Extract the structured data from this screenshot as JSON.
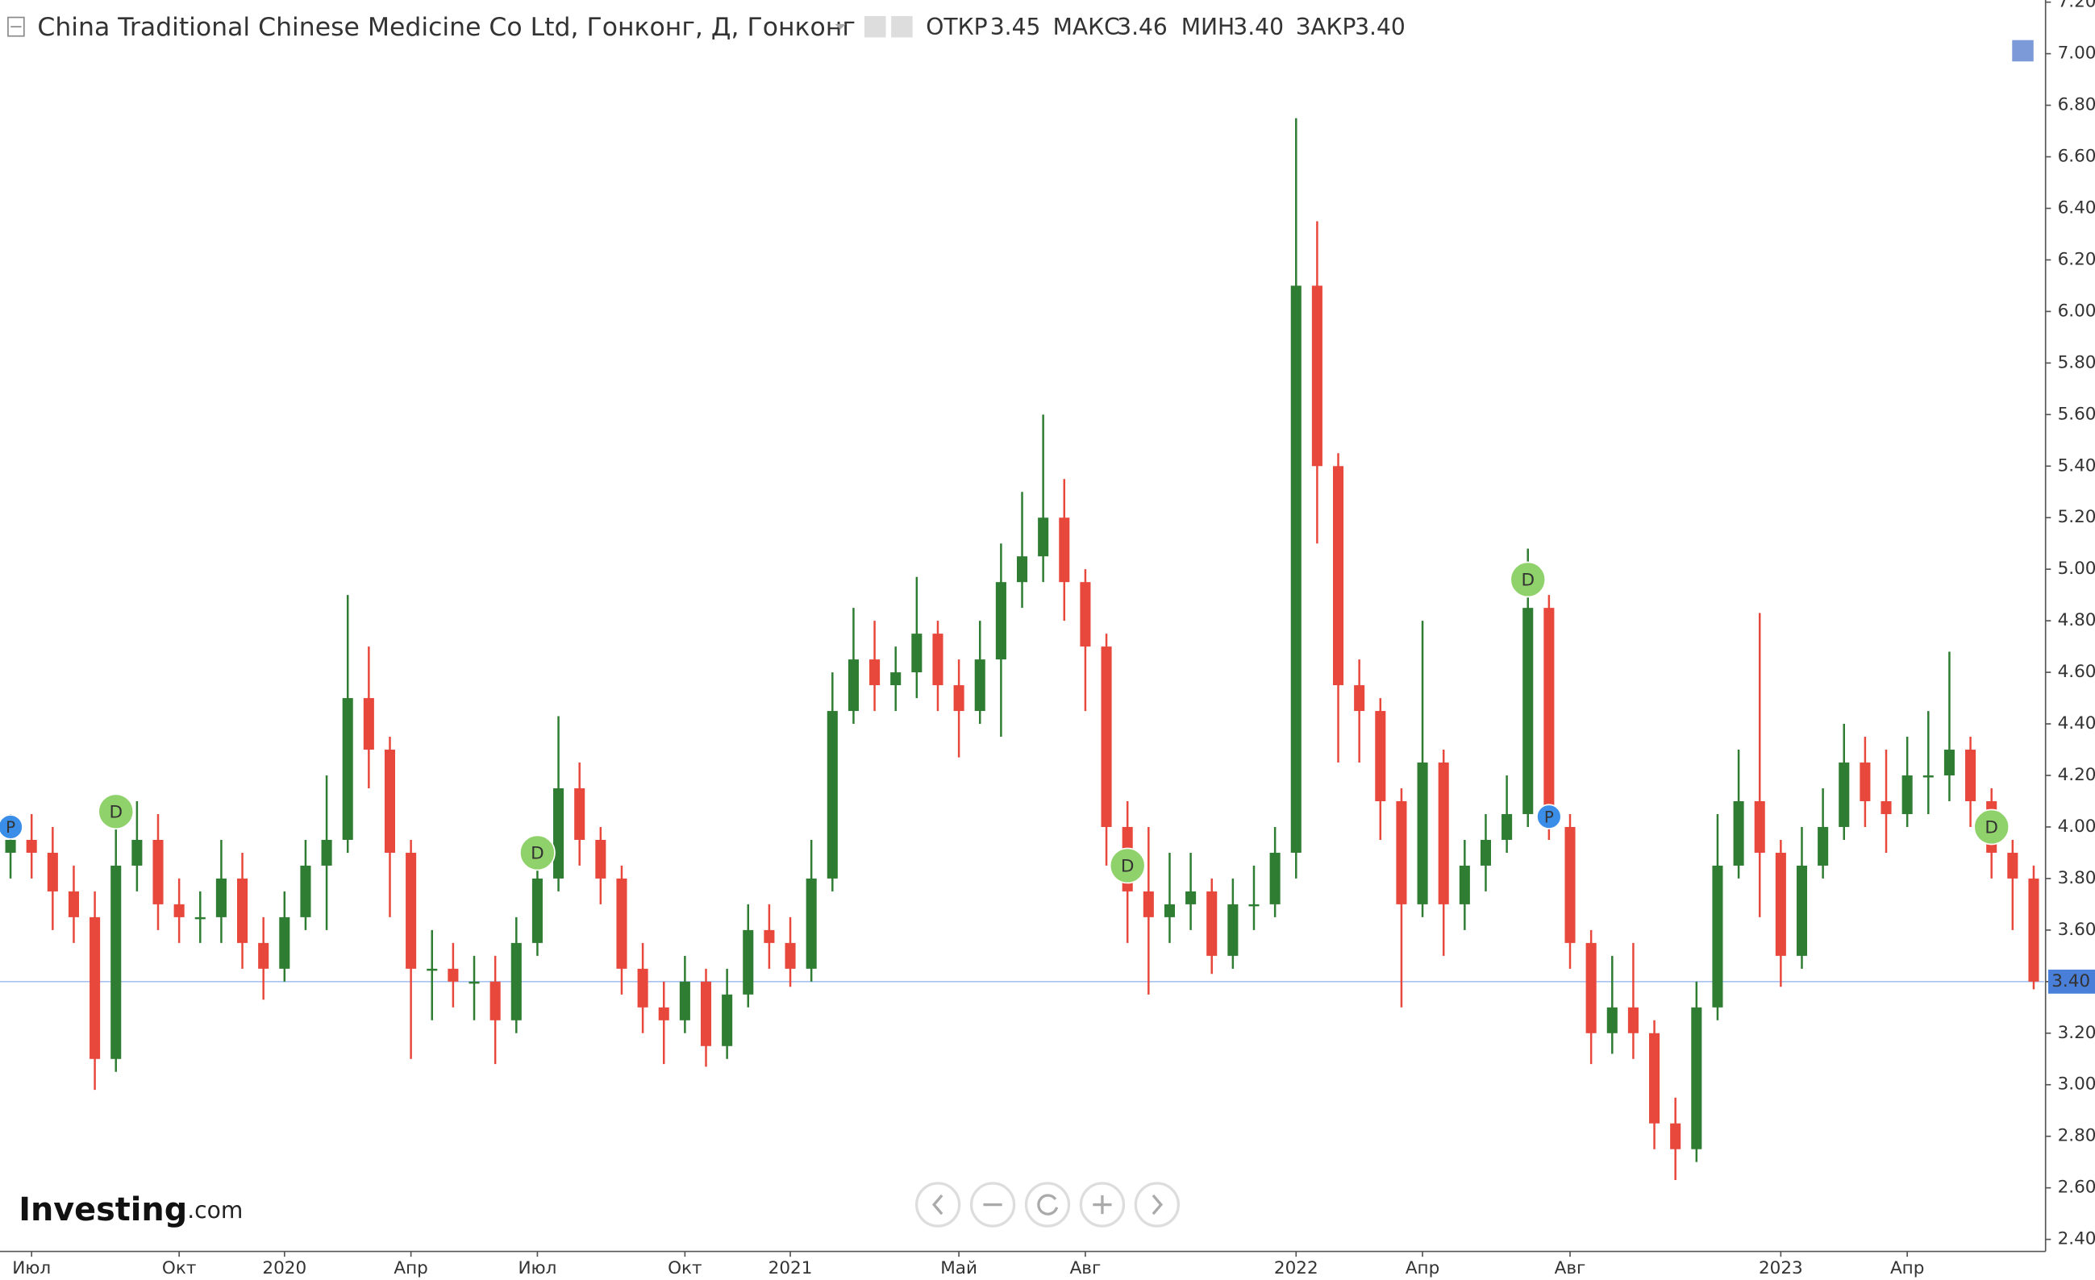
{
  "chart_data": {
    "type": "candlestick",
    "title": "China Traditional Chinese Medicine Co Ltd, Гонконг, Д, Гонконг",
    "header": [
      {
        "label": "ОТКР",
        "value": 3.45,
        "value_label": "3.45"
      },
      {
        "label": "МАКС",
        "value": 3.46,
        "value_label": "3.46"
      },
      {
        "label": "МИН",
        "value": 3.4,
        "value_label": "3.40"
      },
      {
        "label": "ЗАКР",
        "value": 3.4,
        "value_label": "3.40"
      }
    ],
    "logo": {
      "brand": "Investing",
      "suffix": ".com"
    },
    "categories": [
      null,
      "Июл",
      null,
      null,
      null,
      null,
      null,
      null,
      "Окт",
      null,
      null,
      null,
      null,
      "2020",
      null,
      null,
      null,
      null,
      null,
      "Апр",
      null,
      null,
      null,
      null,
      null,
      "Июл",
      null,
      null,
      null,
      null,
      null,
      null,
      "Окт",
      null,
      null,
      null,
      null,
      "2021",
      null,
      null,
      null,
      null,
      null,
      null,
      null,
      "Май",
      null,
      null,
      null,
      null,
      null,
      "Авг",
      null,
      null,
      null,
      null,
      null,
      null,
      null,
      null,
      null,
      "2022",
      null,
      null,
      null,
      null,
      null,
      "Апр",
      null,
      null,
      null,
      null,
      null,
      null,
      "Авг",
      null,
      null,
      null,
      null,
      null,
      null,
      null,
      null,
      null,
      "2023",
      null,
      null,
      null,
      null,
      null,
      "Апр",
      null,
      null,
      null,
      null,
      null,
      null
    ],
    "open": [
      3.9,
      3.95,
      3.9,
      3.75,
      3.65,
      3.1,
      3.85,
      3.95,
      3.7,
      3.65,
      3.65,
      3.8,
      3.55,
      3.45,
      3.65,
      3.85,
      3.95,
      4.5,
      4.3,
      3.9,
      3.45,
      3.45,
      3.4,
      3.4,
      3.25,
      3.55,
      3.8,
      4.15,
      3.95,
      3.8,
      3.45,
      3.3,
      3.25,
      3.4,
      3.15,
      3.35,
      3.6,
      3.55,
      3.45,
      3.8,
      4.45,
      4.65,
      4.55,
      4.6,
      4.75,
      4.55,
      4.45,
      4.65,
      4.95,
      5.05,
      5.2,
      4.95,
      4.7,
      4.0,
      3.75,
      3.65,
      3.7,
      3.75,
      3.5,
      3.7,
      3.7,
      3.9,
      6.1,
      5.4,
      4.55,
      4.45,
      4.1,
      3.7,
      4.25,
      3.7,
      3.85,
      3.95,
      4.05,
      4.85,
      4.0,
      3.55,
      3.2,
      3.3,
      3.2,
      2.85,
      2.75,
      3.3,
      3.85,
      4.1,
      3.9,
      3.5,
      3.85,
      4.0,
      4.25,
      4.1,
      4.05,
      4.2,
      4.2,
      4.3,
      4.1,
      3.9,
      3.8
    ],
    "high": [
      4.05,
      4.05,
      4.0,
      3.85,
      3.75,
      4.05,
      4.1,
      4.05,
      3.8,
      3.75,
      3.95,
      3.9,
      3.65,
      3.75,
      3.95,
      4.2,
      4.9,
      4.7,
      4.35,
      3.95,
      3.6,
      3.55,
      3.5,
      3.5,
      3.65,
      3.95,
      4.43,
      4.25,
      4.0,
      3.85,
      3.55,
      3.4,
      3.5,
      3.45,
      3.45,
      3.7,
      3.7,
      3.65,
      3.95,
      4.6,
      4.85,
      4.8,
      4.7,
      4.97,
      4.8,
      4.65,
      4.8,
      5.1,
      5.3,
      5.6,
      5.35,
      5.0,
      4.75,
      4.1,
      4.0,
      3.9,
      3.9,
      3.8,
      3.8,
      3.85,
      4.0,
      6.75,
      6.35,
      5.45,
      4.65,
      4.5,
      4.15,
      4.8,
      4.3,
      3.95,
      4.05,
      4.2,
      5.08,
      4.9,
      4.05,
      3.6,
      3.5,
      3.55,
      3.25,
      2.95,
      3.4,
      4.05,
      4.3,
      4.83,
      3.95,
      4.0,
      4.15,
      4.4,
      4.35,
      4.3,
      4.35,
      4.45,
      4.68,
      4.35,
      4.15,
      3.95,
      3.85
    ],
    "low": [
      3.8,
      3.8,
      3.6,
      3.55,
      2.98,
      3.05,
      3.75,
      3.6,
      3.55,
      3.55,
      3.55,
      3.45,
      3.33,
      3.4,
      3.6,
      3.6,
      3.9,
      4.15,
      3.65,
      3.1,
      3.25,
      3.3,
      3.25,
      3.08,
      3.2,
      3.5,
      3.75,
      3.85,
      3.7,
      3.35,
      3.2,
      3.08,
      3.2,
      3.07,
      3.1,
      3.3,
      3.45,
      3.38,
      3.4,
      3.75,
      4.4,
      4.45,
      4.45,
      4.5,
      4.45,
      4.27,
      4.4,
      4.35,
      4.85,
      4.95,
      4.8,
      4.45,
      3.85,
      3.55,
      3.35,
      3.55,
      3.6,
      3.43,
      3.45,
      3.6,
      3.65,
      3.8,
      5.1,
      4.25,
      4.25,
      3.95,
      3.3,
      3.65,
      3.5,
      3.6,
      3.75,
      3.9,
      4.0,
      3.95,
      3.45,
      3.08,
      3.12,
      3.1,
      2.75,
      2.63,
      2.7,
      3.25,
      3.8,
      3.65,
      3.38,
      3.45,
      3.8,
      3.95,
      4.0,
      3.9,
      4.0,
      4.05,
      4.1,
      4.0,
      3.8,
      3.6,
      3.37
    ],
    "close": [
      3.95,
      3.9,
      3.75,
      3.65,
      3.1,
      3.85,
      3.95,
      3.7,
      3.65,
      3.65,
      3.8,
      3.55,
      3.45,
      3.65,
      3.85,
      3.95,
      4.5,
      4.3,
      3.9,
      3.45,
      3.45,
      3.4,
      3.4,
      3.25,
      3.55,
      3.8,
      4.15,
      3.95,
      3.8,
      3.45,
      3.3,
      3.25,
      3.4,
      3.15,
      3.35,
      3.6,
      3.55,
      3.45,
      3.8,
      4.45,
      4.65,
      4.55,
      4.6,
      4.75,
      4.55,
      4.45,
      4.65,
      4.95,
      5.05,
      5.2,
      4.95,
      4.7,
      4.0,
      3.75,
      3.65,
      3.7,
      3.75,
      3.5,
      3.7,
      3.7,
      3.9,
      6.1,
      5.4,
      4.55,
      4.45,
      4.1,
      3.7,
      4.25,
      3.7,
      3.85,
      3.95,
      4.05,
      4.85,
      4.0,
      3.55,
      3.2,
      3.3,
      3.2,
      2.85,
      2.75,
      3.3,
      3.85,
      4.1,
      3.9,
      3.5,
      3.85,
      4.0,
      4.25,
      4.1,
      4.05,
      4.2,
      4.2,
      4.3,
      4.1,
      3.9,
      3.8,
      3.4
    ],
    "up_color": "#2e7d32",
    "down_color": "#e8473b",
    "events": [
      {
        "at": 0,
        "label": "P",
        "price": 4.0,
        "color": "#3b8ee8"
      },
      {
        "at": 5,
        "label": "D",
        "price": 4.06,
        "color": "#8fd16a"
      },
      {
        "at": 25,
        "label": "D",
        "price": 3.9,
        "color": "#8fd16a"
      },
      {
        "at": 53,
        "label": "D",
        "price": 3.85,
        "color": "#8fd16a"
      },
      {
        "at": 72,
        "label": "D",
        "price": 4.96,
        "color": "#8fd16a"
      },
      {
        "at": 73,
        "label": "P",
        "price": 4.04,
        "color": "#3b8ee8"
      },
      {
        "at": 94,
        "label": "D",
        "price": 4.0,
        "color": "#8fd16a"
      }
    ],
    "last_price": {
      "value": 3.4,
      "label": "3.40"
    },
    "ylim": [
      2.4,
      7.2
    ],
    "yticks": [
      {
        "value": 2.4,
        "label": "2.40"
      },
      {
        "value": 2.6,
        "label": "2.60"
      },
      {
        "value": 2.8,
        "label": "2.80"
      },
      {
        "value": 3.0,
        "label": "3.00"
      },
      {
        "value": 3.2,
        "label": "3.20"
      },
      {
        "value": 3.4,
        "label": "3.40"
      },
      {
        "value": 3.6,
        "label": "3.60"
      },
      {
        "value": 3.8,
        "label": "3.80"
      },
      {
        "value": 4.0,
        "label": "4.00"
      },
      {
        "value": 4.2,
        "label": "4.20"
      },
      {
        "value": 4.4,
        "label": "4.40"
      },
      {
        "value": 4.6,
        "label": "4.60"
      },
      {
        "value": 4.8,
        "label": "4.80"
      },
      {
        "value": 5.0,
        "label": "5.00"
      },
      {
        "value": 5.2,
        "label": "5.20"
      },
      {
        "value": 5.4,
        "label": "5.40"
      },
      {
        "value": 5.6,
        "label": "5.60"
      },
      {
        "value": 5.8,
        "label": "5.80"
      },
      {
        "value": 6.0,
        "label": "6.00"
      },
      {
        "value": 6.2,
        "label": "6.20"
      },
      {
        "value": 6.4,
        "label": "6.40"
      },
      {
        "value": 6.6,
        "label": "6.60"
      },
      {
        "value": 6.8,
        "label": "6.80"
      },
      {
        "value": 7.0,
        "label": "7.00"
      },
      {
        "value": 7.2,
        "label": "7.20"
      }
    ],
    "grid": false
  }
}
